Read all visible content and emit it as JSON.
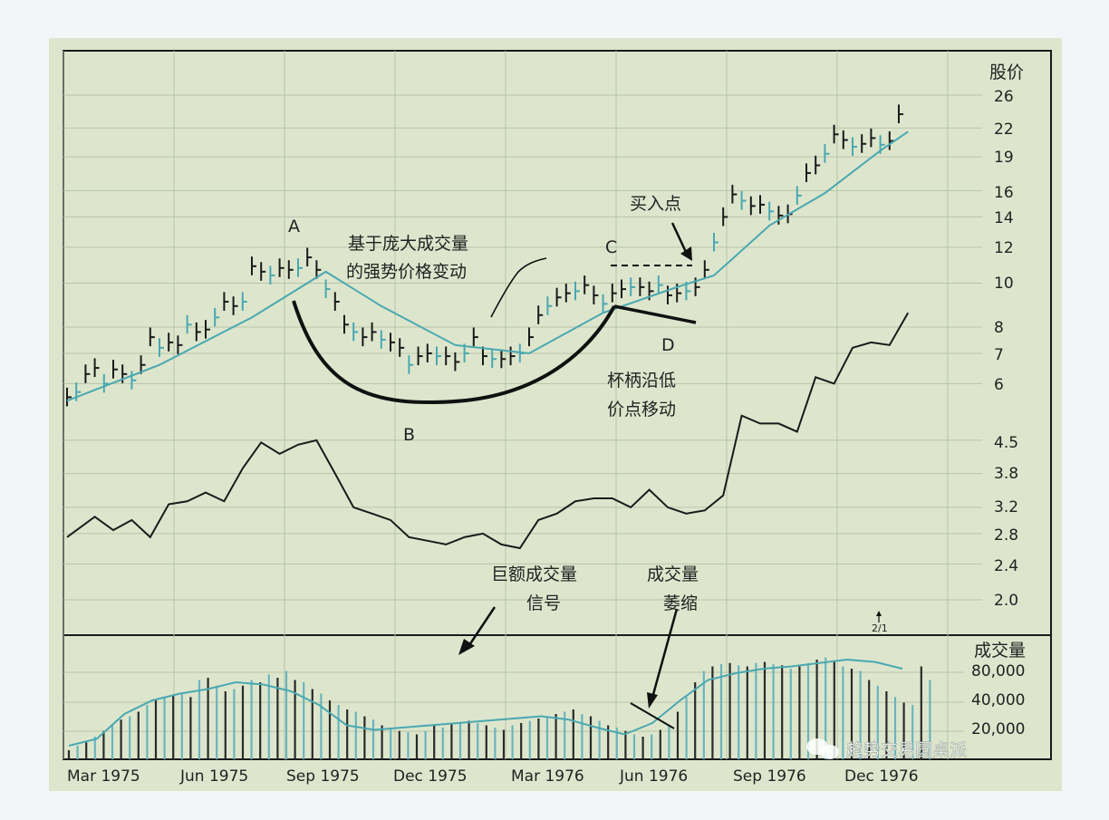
{
  "chart_data": {
    "type": "line",
    "price_axis": {
      "title": "股价",
      "scale": "log",
      "ticks": [
        "26",
        "22",
        "19",
        "16",
        "14",
        "12",
        "10",
        "8",
        "7",
        "6",
        "4.5",
        "3.8",
        "3.2",
        "2.8",
        "2.4",
        "2.0"
      ]
    },
    "volume_axis": {
      "title": "成交量",
      "ticks": [
        "80,000",
        "40,000",
        "20,000"
      ]
    },
    "x_labels": [
      "Mar 1975",
      "Jun 1975",
      "Sep 1975",
      "Dec 1975",
      "Mar 1976",
      "Jun 1976",
      "Sep 1976",
      "Dec 1976"
    ],
    "series": [
      {
        "kind": "price_bars",
        "color_up": "#1a1a1a",
        "color_alt": "#4aa8b0",
        "points": [
          [
            0,
            5.6
          ],
          [
            0.1,
            5.75
          ],
          [
            0.2,
            6.3
          ],
          [
            0.3,
            6.5
          ],
          [
            0.4,
            6.0
          ],
          [
            0.5,
            6.45
          ],
          [
            0.6,
            6.3
          ],
          [
            0.7,
            6.1
          ],
          [
            0.8,
            6.6
          ],
          [
            0.9,
            7.6
          ],
          [
            1.0,
            7.2
          ],
          [
            1.1,
            7.4
          ],
          [
            1.2,
            7.3
          ],
          [
            1.3,
            8.1
          ],
          [
            1.4,
            7.8
          ],
          [
            1.5,
            7.9
          ],
          [
            1.6,
            8.4
          ],
          [
            1.7,
            9.1
          ],
          [
            1.8,
            8.9
          ],
          [
            1.9,
            9.1
          ],
          [
            2.0,
            10.9
          ],
          [
            2.1,
            10.6
          ],
          [
            2.2,
            10.4
          ],
          [
            2.3,
            10.8
          ],
          [
            2.4,
            10.7
          ],
          [
            2.5,
            10.8
          ],
          [
            2.6,
            11.4
          ],
          [
            2.7,
            10.7
          ],
          [
            2.8,
            9.7
          ],
          [
            2.9,
            9.1
          ],
          [
            3.0,
            8.1
          ],
          [
            3.1,
            7.8
          ],
          [
            3.2,
            7.6
          ],
          [
            3.3,
            7.8
          ],
          [
            3.4,
            7.5
          ],
          [
            3.5,
            7.4
          ],
          [
            3.6,
            7.2
          ],
          [
            3.7,
            6.6
          ],
          [
            3.8,
            6.9
          ],
          [
            3.9,
            7.0
          ],
          [
            4.0,
            6.9
          ],
          [
            4.1,
            6.9
          ],
          [
            4.2,
            6.7
          ],
          [
            4.3,
            7.0
          ],
          [
            4.4,
            7.6
          ],
          [
            4.5,
            6.9
          ],
          [
            4.6,
            6.8
          ],
          [
            4.7,
            6.8
          ],
          [
            4.8,
            6.9
          ],
          [
            4.9,
            7.0
          ],
          [
            5.0,
            7.6
          ],
          [
            5.1,
            8.5
          ],
          [
            5.2,
            8.9
          ],
          [
            5.3,
            9.3
          ],
          [
            5.4,
            9.5
          ],
          [
            5.5,
            9.6
          ],
          [
            5.6,
            9.9
          ],
          [
            5.7,
            9.4
          ],
          [
            5.8,
            9.0
          ],
          [
            5.9,
            9.5
          ],
          [
            6.0,
            9.7
          ],
          [
            6.1,
            9.8
          ],
          [
            6.2,
            9.8
          ],
          [
            6.3,
            9.6
          ],
          [
            6.4,
            9.9
          ],
          [
            6.5,
            9.4
          ],
          [
            6.6,
            9.5
          ],
          [
            6.7,
            9.6
          ],
          [
            6.8,
            9.8
          ],
          [
            6.9,
            10.7
          ],
          [
            7.0,
            12.3
          ],
          [
            7.1,
            14.0
          ],
          [
            7.2,
            15.7
          ],
          [
            7.3,
            15.2
          ],
          [
            7.4,
            14.8
          ],
          [
            7.5,
            14.9
          ],
          [
            7.6,
            14.4
          ],
          [
            7.7,
            14.1
          ],
          [
            7.8,
            14.2
          ],
          [
            7.9,
            15.6
          ],
          [
            8.0,
            17.5
          ],
          [
            8.1,
            18.2
          ],
          [
            8.2,
            19.3
          ],
          [
            8.3,
            21.3
          ],
          [
            8.4,
            20.7
          ],
          [
            8.5,
            20.0
          ],
          [
            8.6,
            20.3
          ],
          [
            8.7,
            20.9
          ],
          [
            8.8,
            20.2
          ],
          [
            8.9,
            20.6
          ],
          [
            9.0,
            23.6
          ]
        ]
      },
      {
        "kind": "price_moving_average",
        "color": "#4aa8b0",
        "points": [
          [
            0,
            5.5
          ],
          [
            1.0,
            6.6
          ],
          [
            2.0,
            8.4
          ],
          [
            2.8,
            10.6
          ],
          [
            3.4,
            8.9
          ],
          [
            4.2,
            7.3
          ],
          [
            5.0,
            7.0
          ],
          [
            5.8,
            8.6
          ],
          [
            6.6,
            9.8
          ],
          [
            7.0,
            10.4
          ],
          [
            7.6,
            13.4
          ],
          [
            8.2,
            15.8
          ],
          [
            8.8,
            19.6
          ],
          [
            9.1,
            21.6
          ]
        ]
      },
      {
        "kind": "relative_strength_line",
        "color": "#1a1a1a",
        "points": [
          [
            0,
            2.75
          ],
          [
            0.3,
            3.05
          ],
          [
            0.5,
            2.85
          ],
          [
            0.7,
            3.0
          ],
          [
            0.9,
            2.75
          ],
          [
            1.1,
            3.25
          ],
          [
            1.3,
            3.3
          ],
          [
            1.5,
            3.45
          ],
          [
            1.7,
            3.3
          ],
          [
            1.9,
            3.9
          ],
          [
            2.1,
            4.45
          ],
          [
            2.3,
            4.2
          ],
          [
            2.5,
            4.4
          ],
          [
            2.7,
            4.5
          ],
          [
            2.9,
            3.8
          ],
          [
            3.1,
            3.2
          ],
          [
            3.3,
            3.1
          ],
          [
            3.5,
            3.0
          ],
          [
            3.7,
            2.75
          ],
          [
            3.9,
            2.7
          ],
          [
            4.1,
            2.65
          ],
          [
            4.3,
            2.75
          ],
          [
            4.5,
            2.8
          ],
          [
            4.7,
            2.65
          ],
          [
            4.9,
            2.6
          ],
          [
            5.1,
            3.0
          ],
          [
            5.3,
            3.1
          ],
          [
            5.5,
            3.3
          ],
          [
            5.7,
            3.35
          ],
          [
            5.9,
            3.35
          ],
          [
            6.1,
            3.2
          ],
          [
            6.3,
            3.5
          ],
          [
            6.5,
            3.2
          ],
          [
            6.7,
            3.1
          ],
          [
            6.9,
            3.15
          ],
          [
            7.1,
            3.4
          ],
          [
            7.3,
            5.1
          ],
          [
            7.5,
            4.9
          ],
          [
            7.7,
            4.9
          ],
          [
            7.9,
            4.7
          ],
          [
            8.1,
            6.2
          ],
          [
            8.3,
            6.0
          ],
          [
            8.5,
            7.2
          ],
          [
            8.7,
            7.4
          ],
          [
            8.9,
            7.3
          ],
          [
            9.1,
            8.6
          ]
        ]
      },
      {
        "kind": "volume_bars",
        "values": [
          8,
          12,
          15,
          20,
          25,
          30,
          35,
          38,
          42,
          48,
          52,
          55,
          56,
          58,
          55,
          70,
          72,
          65,
          60,
          62,
          65,
          70,
          68,
          75,
          72,
          78,
          70,
          68,
          62,
          58,
          52,
          48,
          44,
          42,
          38,
          35,
          30,
          28,
          25,
          24,
          22,
          25,
          30,
          28,
          32,
          33,
          34,
          32,
          30,
          28,
          26,
          30,
          32,
          34,
          36,
          38,
          40,
          42,
          44,
          40,
          38,
          34,
          30,
          28,
          25,
          22,
          20,
          22,
          26,
          30,
          42,
          55,
          68,
          78,
          82,
          84,
          85,
          83,
          82,
          85,
          86,
          84,
          83,
          80,
          82,
          85,
          88,
          90,
          86,
          82,
          80,
          78,
          70,
          65,
          60,
          55,
          50,
          48,
          82,
          70
        ]
      },
      {
        "kind": "volume_moving_average",
        "color": "#4aa8b0",
        "values": [
          12,
          18,
          40,
          52,
          58,
          62,
          68,
          66,
          60,
          48,
          30,
          26,
          28,
          30,
          32,
          34,
          36,
          38,
          35,
          28,
          22,
          32,
          52,
          70,
          76,
          80,
          82,
          85,
          88,
          86,
          80
        ]
      }
    ],
    "annotations": {
      "point_a": "A",
      "point_b": "B",
      "point_c": "C",
      "point_d": "D",
      "drop_label_1": "基于庞大成交量",
      "drop_label_2": "的强势价格变动",
      "buy_point": "买入点",
      "handle_label_1": "杯柄沿低",
      "handle_label_2": "价点移动",
      "big_volume_1": "巨额成交量",
      "big_volume_2": "信号",
      "volume_dry_1": "成交量",
      "volume_dry_2": "萎缩",
      "split_marker": "2/1",
      "watermark": "趋势交易圆桌派"
    }
  }
}
